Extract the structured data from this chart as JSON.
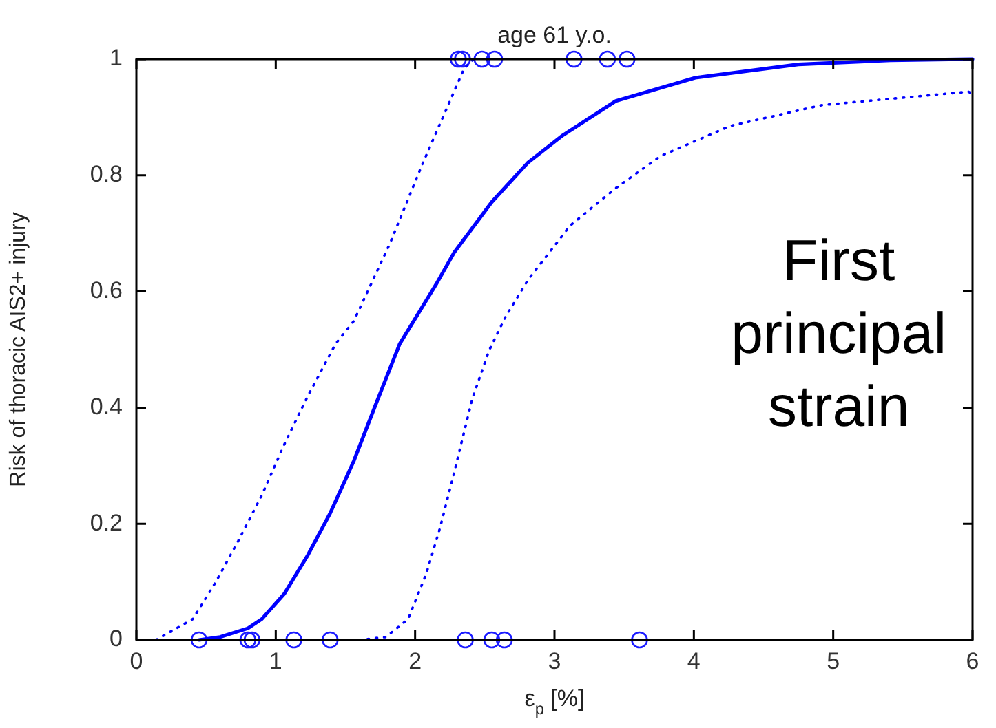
{
  "chart_data": {
    "type": "line",
    "title": "age 61 y.o.",
    "xlabel": "ε$_{p}$ [%]",
    "ylabel": "Risk of thoracic AIS2+ injury",
    "xlim": [
      0,
      6
    ],
    "xticks": [
      0,
      1,
      2,
      3,
      4,
      5,
      6
    ],
    "ylim": [
      0,
      1
    ],
    "yticks": [
      0,
      0.2,
      0.4,
      0.6,
      0.8,
      1
    ],
    "annotations": [
      "First principal strain"
    ],
    "series": [
      {
        "color": "#0000ff",
        "marker": "none",
        "line_style": "solid",
        "x": [
          0.45,
          0.6,
          0.8,
          0.9,
          1.06,
          1.23,
          1.39,
          1.56,
          1.72,
          1.89,
          2.15,
          2.28,
          2.55,
          2.81,
          3.06,
          3.44,
          4.01,
          4.75,
          5.41,
          6
        ],
        "values": [
          0,
          0.005,
          0.02,
          0.036,
          0.079,
          0.146,
          0.218,
          0.308,
          0.407,
          0.51,
          0.612,
          0.667,
          0.754,
          0.822,
          0.869,
          0.928,
          0.968,
          0.991,
          0.998,
          1
        ]
      },
      {
        "color": "#0000ff",
        "marker": "none",
        "line_style": "dotted",
        "x": [
          0.14,
          0.405,
          0.57,
          0.73,
          0.9,
          1.06,
          1.23,
          1.43,
          1.56,
          1.82,
          2.05,
          2.25,
          2.35,
          2.42
        ],
        "values": [
          0,
          0.036,
          0.1,
          0.17,
          0.249,
          0.336,
          0.42,
          0.51,
          0.549,
          0.683,
          0.818,
          0.928,
          0.983,
          1
        ]
      },
      {
        "color": "#0000ff",
        "marker": "none",
        "line_style": "dotted",
        "x": [
          1.6,
          1.79,
          1.95,
          2.08,
          2.18,
          2.28,
          2.41,
          2.53,
          2.65,
          2.81,
          3.04,
          3.11,
          3.44,
          3.76,
          4.26,
          4.92,
          5.97,
          6
        ],
        "values": [
          0,
          0.005,
          0.036,
          0.114,
          0.194,
          0.288,
          0.415,
          0.498,
          0.557,
          0.62,
          0.691,
          0.713,
          0.778,
          0.833,
          0.885,
          0.921,
          0.944,
          0.94
        ]
      },
      {
        "type": "scatter",
        "color": "#1a1aff",
        "marker": "circle",
        "x": [
          2.31,
          2.34,
          2.48,
          2.57,
          3.14,
          3.38,
          3.52,
          0.45,
          0.8,
          0.83,
          1.13,
          1.39,
          2.36,
          2.55,
          2.64,
          3.61
        ],
        "values": [
          1,
          1,
          1,
          1,
          1,
          1,
          1,
          0,
          0,
          0,
          0,
          0,
          0,
          0,
          0,
          0
        ]
      }
    ]
  }
}
